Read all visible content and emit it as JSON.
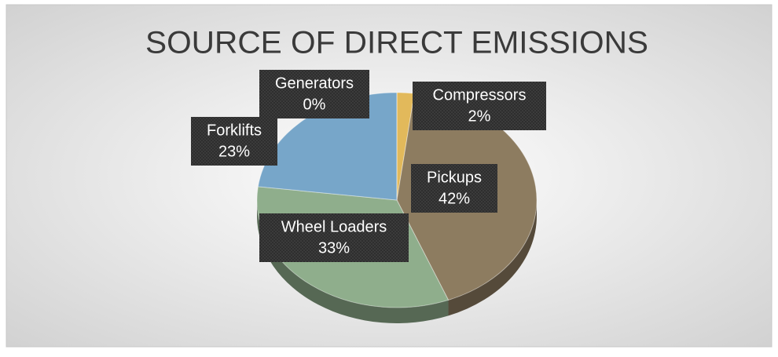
{
  "chart_data": {
    "type": "pie3d",
    "title": "SOURCE OF DIRECT EMISSIONS",
    "categories": [
      "Compressors",
      "Pickups",
      "Wheel Loaders",
      "Forklifts",
      "Generators"
    ],
    "values": [
      2,
      42,
      33,
      23,
      0
    ],
    "value_labels": [
      "2%",
      "42%",
      "33%",
      "23%",
      "0%"
    ],
    "colors": [
      "#e2b95b",
      "#8d7c60",
      "#8fae8c",
      "#77a6c9",
      "#b9b9b9"
    ]
  }
}
